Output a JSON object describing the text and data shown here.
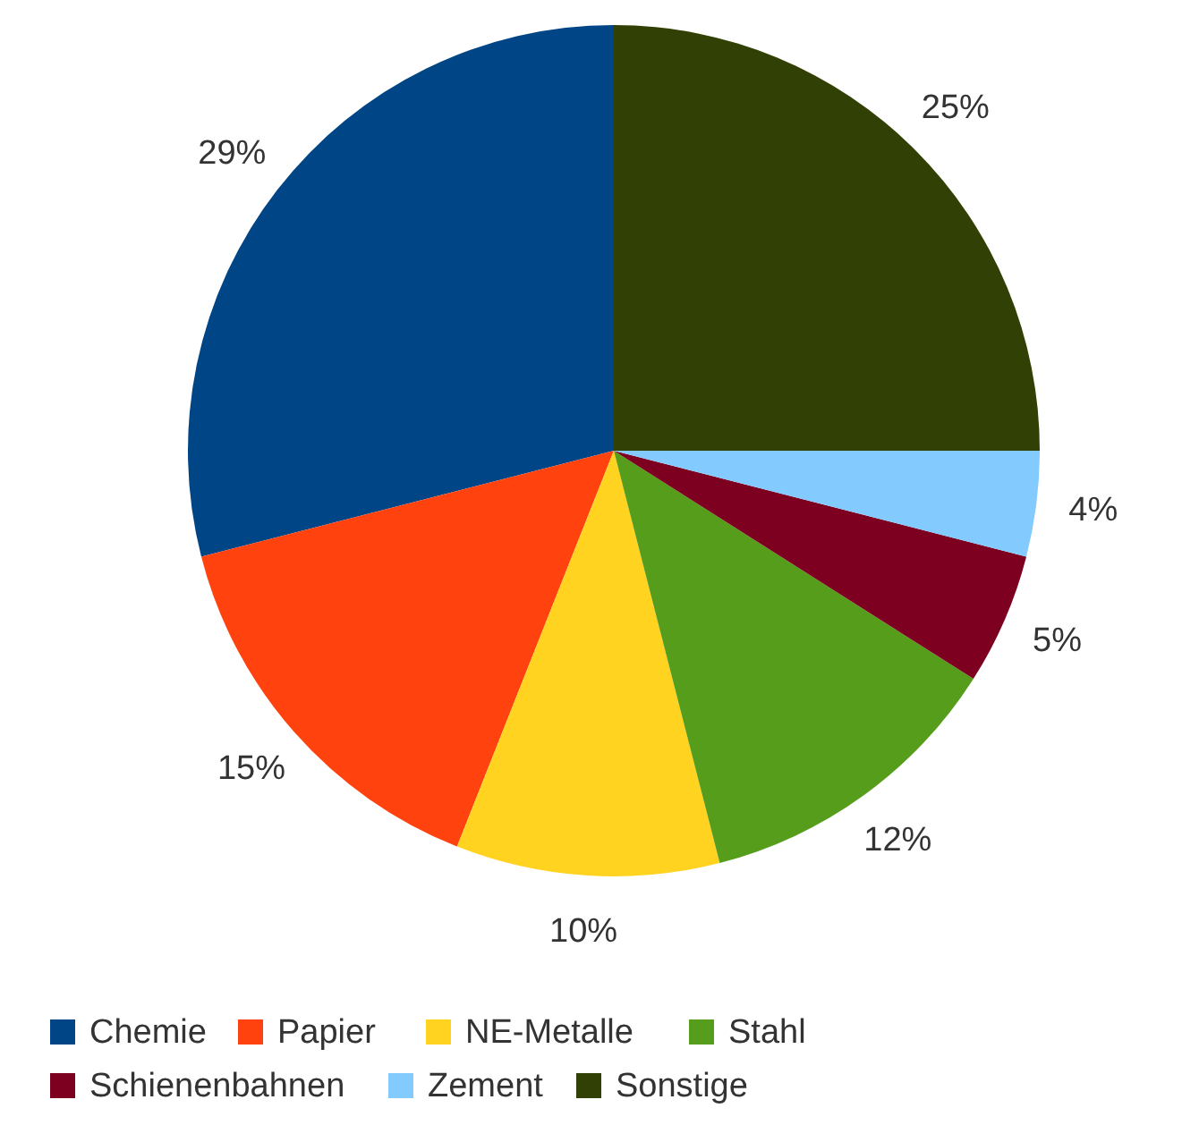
{
  "chart_data": {
    "type": "pie",
    "categories": [
      "Chemie",
      "Papier",
      "NE-Metalle",
      "Stahl",
      "Schienenbahnen",
      "Zement",
      "Sonstige"
    ],
    "values": [
      29,
      15,
      10,
      12,
      5,
      4,
      25
    ],
    "colors": [
      "#004586",
      "#ff420e",
      "#ffd320",
      "#579d1c",
      "#7e0021",
      "#83caff",
      "#314004"
    ],
    "value_labels": [
      "29%",
      "15%",
      "10%",
      "12%",
      "5%",
      "4%",
      "25%"
    ],
    "legend": "bottom"
  }
}
